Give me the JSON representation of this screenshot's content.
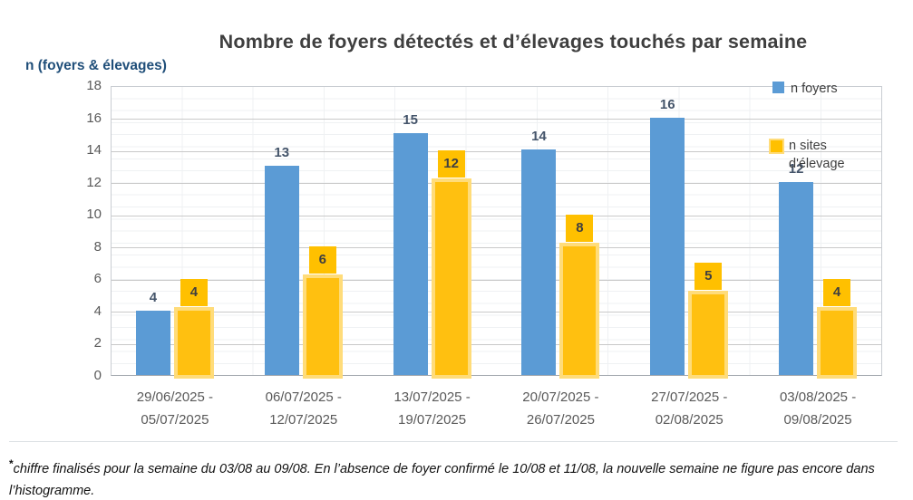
{
  "title": "Nombre de foyers détectés et d’élevages touchés par semaine",
  "y_axis_title": "n (foyers & élevages)",
  "legend": {
    "foyers_label": "n foyers",
    "sites_label_line1": "n sites",
    "sites_label_line2": "d'élevage"
  },
  "footnote": {
    "marker": "*",
    "text": "chiffre finalisés pour la semaine du 03/08 au 09/08. En l’absence de foyer confirmé le 10/08 et 11/08, la nouvelle semaine ne figure pas encore dans l’histogramme."
  },
  "colors": {
    "foyers_bar": "#5B9BD5",
    "sites_bar": "#FFC010",
    "sites_bar_rim": "#FFDC7A",
    "sites_label_box": "#FFC000",
    "title_text": "#3F3F3F",
    "axis_text": "#595959",
    "foyers_value_text": "#44546A",
    "y_axis_title_text": "#1F4E79"
  },
  "chart_data": {
    "type": "bar",
    "title": "Nombre de foyers détectés et d’élevages touchés par semaine",
    "xlabel": "",
    "ylabel": "n (foyers & élevages)",
    "ylim": [
      0,
      18
    ],
    "ytick_step": 2,
    "grid": "horizontal-major",
    "legend_position": "top-right-inside",
    "categories": [
      [
        "29/06/2025 -",
        "05/07/2025"
      ],
      [
        "06/07/2025 -",
        "12/07/2025"
      ],
      [
        "13/07/2025 -",
        "19/07/2025"
      ],
      [
        "20/07/2025 -",
        "26/07/2025"
      ],
      [
        "27/07/2025 -",
        "02/08/2025"
      ],
      [
        "03/08/2025 -",
        "09/08/2025"
      ]
    ],
    "series": [
      {
        "name": "n foyers",
        "color": "#5B9BD5",
        "values": [
          4,
          13,
          15,
          14,
          16,
          12
        ]
      },
      {
        "name": "n sites d'élevage",
        "color": "#FFC000",
        "values": [
          4,
          6,
          12,
          8,
          5,
          4
        ]
      }
    ]
  }
}
